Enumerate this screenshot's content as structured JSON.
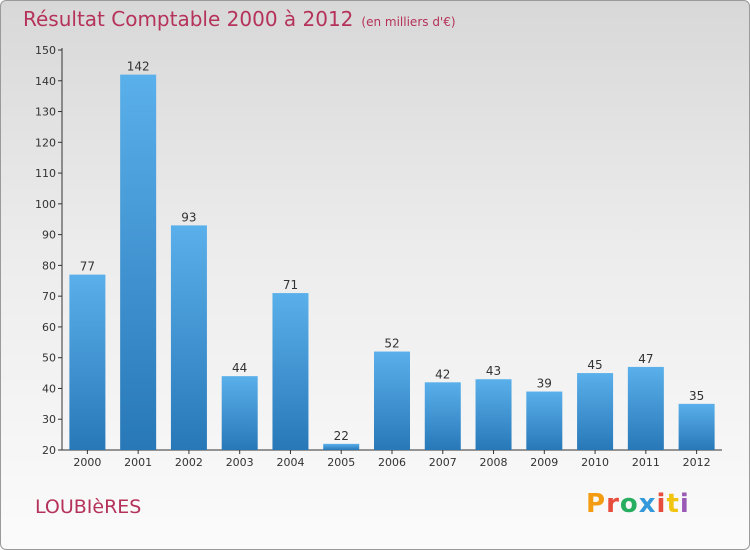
{
  "title": "Résultat Comptable 2000 à 2012",
  "subtitle": "(en milliers d'€)",
  "commune": "LOUBIèRES",
  "logo": {
    "letters": [
      "P",
      "r",
      "o",
      "x",
      "i",
      "t",
      "i"
    ],
    "colors": [
      "#f39c12",
      "#e74c3c",
      "#27ae60",
      "#3498db",
      "#e74c3c",
      "#f1c40f",
      "#9b59b6"
    ]
  },
  "colors": {
    "bar_dark": "#2878b8",
    "bar_light": "#5ab0ea",
    "title": "#b5325a"
  },
  "chart_data": {
    "type": "bar",
    "categories": [
      "2000",
      "2001",
      "2002",
      "2003",
      "2004",
      "2005",
      "2006",
      "2007",
      "2008",
      "2009",
      "2010",
      "2011",
      "2012"
    ],
    "values": [
      77,
      142,
      93,
      44,
      71,
      22,
      52,
      42,
      43,
      39,
      45,
      47,
      35
    ],
    "ylim": [
      20,
      150
    ],
    "yticks": [
      20,
      30,
      40,
      50,
      60,
      70,
      80,
      90,
      100,
      110,
      120,
      130,
      140,
      150
    ],
    "grid": false,
    "title": "Résultat Comptable 2000 à 2012",
    "subtitle": "(en milliers d'€)",
    "xlabel": "",
    "ylabel": ""
  }
}
